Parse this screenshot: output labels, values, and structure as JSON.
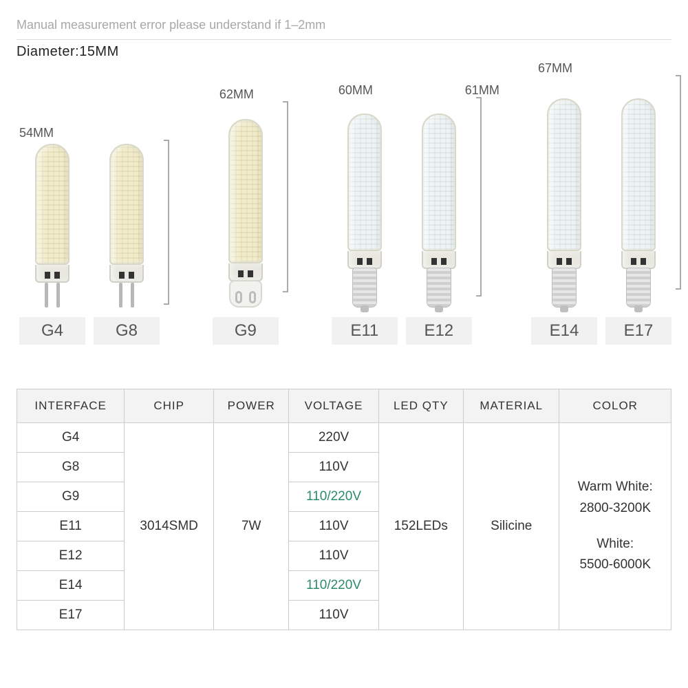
{
  "disclaimer": "Manual measurement error please understand if 1–2mm",
  "diameter_label": "Diameter:15MM",
  "bulbs": {
    "group1": {
      "height_label": "54MM",
      "items": [
        {
          "type": "G4",
          "body_height": 176,
          "tone": "warm",
          "base": "pins"
        },
        {
          "type": "G8",
          "body_height": 176,
          "tone": "warm",
          "base": "pins"
        }
      ]
    },
    "group2": {
      "height_label": "62MM",
      "items": [
        {
          "type": "G9",
          "body_height": 210,
          "tone": "warm",
          "base": "g9"
        }
      ]
    },
    "group3": {
      "height_label": "60MM",
      "items": [
        {
          "type": "E11",
          "body_height": 200,
          "tone": "cool",
          "base": "screw"
        },
        {
          "type": "E12",
          "body_height": 200,
          "tone": "cool",
          "base": "screw"
        }
      ]
    },
    "group3b": {
      "height_label": "61MM"
    },
    "group4": {
      "height_label": "67MM",
      "items": [
        {
          "type": "E14",
          "body_height": 222,
          "tone": "cool",
          "base": "screw"
        },
        {
          "type": "E17",
          "body_height": 222,
          "tone": "cool",
          "base": "screw"
        }
      ]
    }
  },
  "table": {
    "headers": [
      "INTERFACE",
      "CHIP",
      "POWER",
      "VOLTAGE",
      "LED QTY",
      "MATERIAL",
      "COLOR"
    ],
    "interfaces": [
      "G4",
      "G8",
      "G9",
      "E11",
      "E12",
      "E14",
      "E17"
    ],
    "chip": "3014SMD",
    "power": "7W",
    "voltages": [
      "220V",
      "110V",
      "110/220V",
      "110V",
      "110V",
      "110/220V",
      "110V"
    ],
    "voltage_green_indices": [
      2,
      5
    ],
    "led_qty": "152LEDs",
    "material": "Silicine",
    "color_warm_label": "Warm White:",
    "color_warm_value": "2800-3200K",
    "color_white_label": "White:",
    "color_white_value": "5500-6000K"
  },
  "colors": {
    "header_bg": "#f3f3f3",
    "border": "#cccccc",
    "text": "#333333",
    "muted": "#a8a8a8",
    "green": "#2a8a6a",
    "badge_bg": "#f1f1f1",
    "warm_led": "#f2ecc8",
    "cool_led": "#eef4f4"
  }
}
